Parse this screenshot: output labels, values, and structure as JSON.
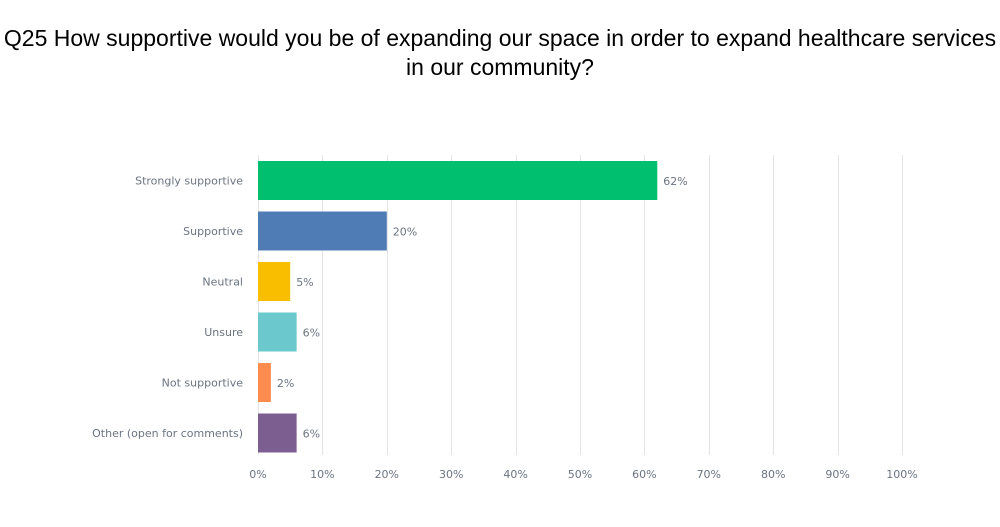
{
  "chart_data": {
    "type": "bar",
    "orientation": "horizontal",
    "title": "Q25 How supportive would you be of expanding our space in order to expand healthcare services in our community?",
    "categories": [
      "Strongly supportive",
      "Supportive",
      "Neutral",
      "Unsure",
      "Not supportive",
      "Other (open for comments)"
    ],
    "values": [
      62,
      20,
      5,
      6,
      2,
      6
    ],
    "value_labels": [
      "62%",
      "20%",
      "5%",
      "6%",
      "2%",
      "6%"
    ],
    "colors": [
      "#00bf6f",
      "#507cb6",
      "#f9be00",
      "#6bc8cd",
      "#ff8b4f",
      "#7d5e90"
    ],
    "xlim": [
      0,
      100
    ],
    "xticks": [
      0,
      10,
      20,
      30,
      40,
      50,
      60,
      70,
      80,
      90,
      100
    ],
    "xtick_labels": [
      "0%",
      "10%",
      "20%",
      "30%",
      "40%",
      "50%",
      "60%",
      "70%",
      "80%",
      "90%",
      "100%"
    ],
    "grid": true,
    "legend": false
  }
}
